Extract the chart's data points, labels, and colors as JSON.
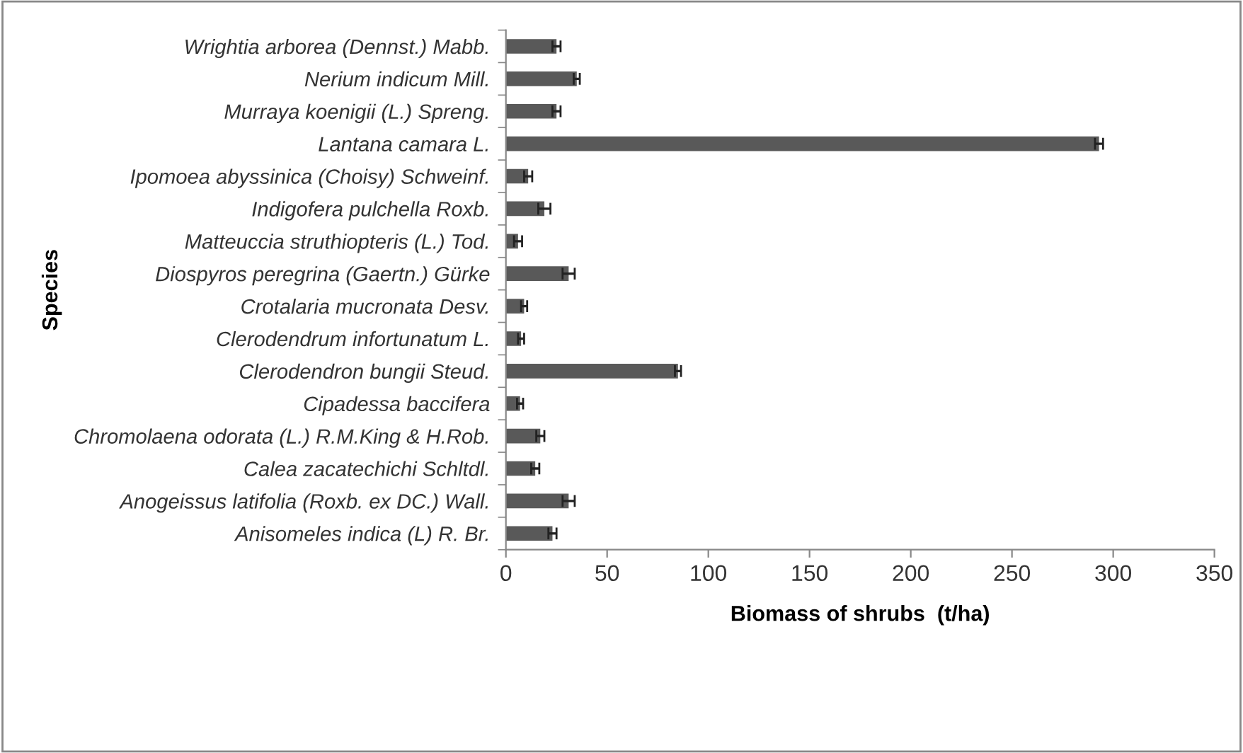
{
  "chart_data": {
    "type": "bar",
    "orientation": "horizontal",
    "xlabel": "Biomass of shrubs  (t/ha)",
    "ylabel": "Species",
    "categories": [
      "Wrightia arborea (Dennst.) Mabb.",
      "Nerium indicum Mill.",
      "Murraya koenigii (L.) Spreng.",
      "Lantana camara L.",
      "Ipomoea abyssinica (Choisy) Schweinf.",
      "Indigofera pulchella Roxb.",
      "Matteuccia struthiopteris (L.) Tod.",
      "Diospyros peregrina (Gaertn.) Gürke",
      "Crotalaria mucronata Desv.",
      "Clerodendrum infortunatum L.",
      "Clerodendron bungii Steud.",
      "Cipadessa baccifera",
      "Chromolaena odorata (L.) R.M.King & H.Rob.",
      "Calea zacatechichi Schltdl.",
      "Anogeissus latifolia (Roxb. ex DC.) Wall.",
      "Anisomeles indica (L) R. Br."
    ],
    "values": [
      25,
      35,
      25,
      293,
      11,
      19,
      6,
      31,
      9,
      7.5,
      85,
      7,
      17,
      14.5,
      31,
      23
    ],
    "errors": [
      2,
      1.5,
      2,
      2,
      2,
      3,
      2,
      3,
      1.5,
      1.5,
      1.5,
      1.5,
      2,
      2,
      3,
      2
    ],
    "color": "#595959",
    "xlim": [
      0,
      350
    ],
    "xticks": [
      0,
      50,
      100,
      150,
      200,
      250,
      300,
      350
    ],
    "grid": false,
    "legend": false
  }
}
